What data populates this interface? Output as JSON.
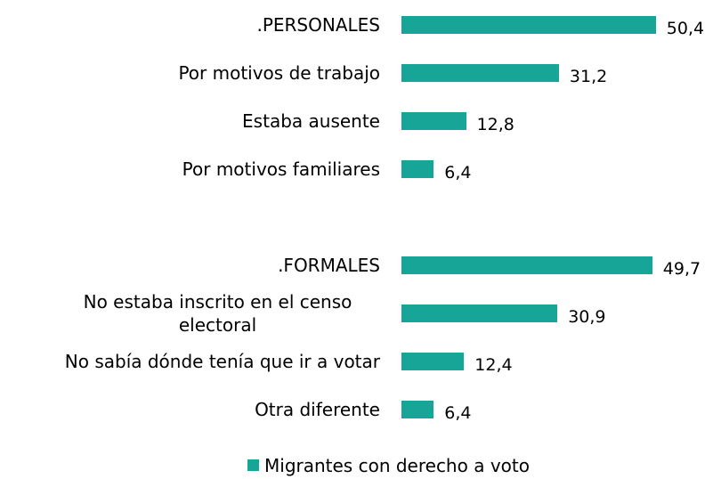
{
  "chart_data": {
    "type": "bar",
    "orientation": "horizontal",
    "categories": [
      ".PERSONALES",
      "Por motivos de trabajo",
      "Estaba ausente",
      "Por motivos familiares",
      null,
      ".FORMALES",
      "No estaba inscrito en el censo electoral",
      "No sabía dónde tenía que ir a votar",
      "Otra diferente"
    ],
    "series": [
      {
        "name": "Migrantes con derecho a voto",
        "color": "#16a596",
        "values": [
          50.4,
          31.2,
          12.8,
          6.4,
          null,
          49.7,
          30.9,
          12.4,
          6.4
        ],
        "value_labels": [
          "50,4",
          "31,2",
          "12,8",
          "6,4",
          null,
          "49,7",
          "30,9",
          "12,4",
          "6,4"
        ]
      }
    ],
    "legend": "bottom"
  }
}
